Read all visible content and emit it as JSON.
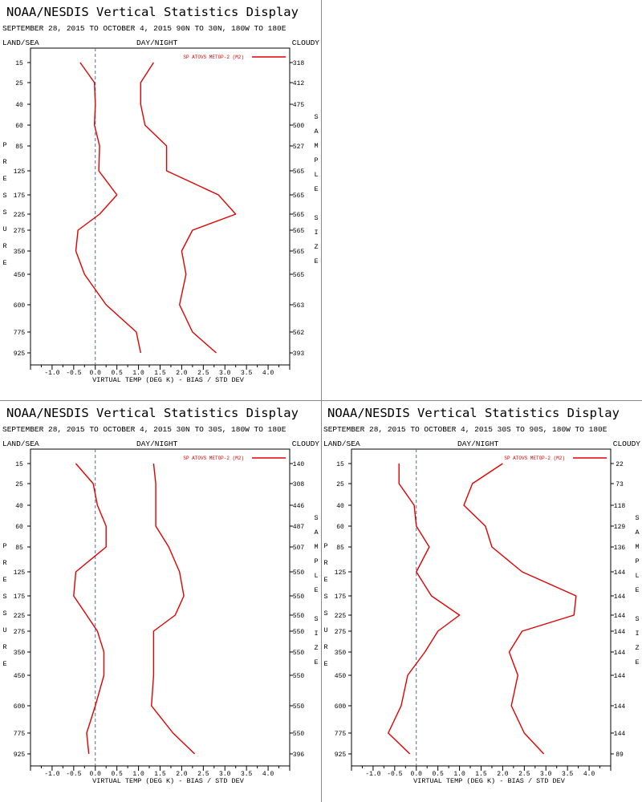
{
  "panels": [
    {
      "title": "NOAA/NESDIS Vertical Statistics Display",
      "subtitle": "SEPTEMBER 28, 2015 TO OCTOBER 4, 2015 90N TO 30N, 180W TO 180E",
      "header_left": "LAND/SEA",
      "header_center": "DAY/NIGHT",
      "header_right": "CLOUDY"
    },
    null,
    {
      "title": "NOAA/NESDIS Vertical Statistics Display",
      "subtitle": "SEPTEMBER 28, 2015 TO OCTOBER 4, 2015 30N TO 30S, 180W TO 180E",
      "header_left": "LAND/SEA",
      "header_center": "DAY/NIGHT",
      "header_right": "CLOUDY"
    },
    {
      "title": "NOAA/NESDIS Vertical Statistics Display",
      "subtitle": "SEPTEMBER 28, 2015 TO OCTOBER 4, 2015 30S TO 90S, 180W TO 180E",
      "header_left": "LAND/SEA",
      "header_center": "DAY/NIGHT",
      "header_right": "CLOUDY"
    }
  ],
  "chart_data": [
    {
      "type": "line",
      "region": "90N TO 30N",
      "pressure_levels": [
        15,
        25,
        40,
        60,
        85,
        125,
        175,
        225,
        275,
        350,
        450,
        600,
        775,
        925
      ],
      "xlabel": "VIRTUAL TEMP (DEG K) - BIAS / STD DEV",
      "ylabel": "PRESSURE",
      "right_label": "SAMPLE SIZE",
      "xticks": [
        "-1.0",
        "-0.5",
        "0.0",
        "0.5",
        "1.0",
        "1.5",
        "2.0",
        "2.5",
        "3.0",
        "3.5",
        "4.0"
      ],
      "xlim": [
        -1.5,
        4.5
      ],
      "legend": "SP ATOVS METOP-2 (M2)",
      "legend_position": "top-right",
      "line_color": "#e00000",
      "series": [
        {
          "name": "bias",
          "values": [
            -0.35,
            -0.02,
            0.0,
            -0.02,
            0.1,
            0.08,
            0.5,
            0.1,
            -0.4,
            -0.45,
            -0.25,
            0.25,
            0.95,
            1.05
          ]
        },
        {
          "name": "std_dev",
          "values": [
            1.35,
            1.05,
            1.05,
            1.15,
            1.65,
            1.65,
            2.85,
            3.25,
            2.25,
            2.0,
            2.1,
            1.95,
            2.25,
            2.8
          ]
        }
      ],
      "sample_size": [
        "318",
        "412",
        "475",
        "500",
        "527",
        "565",
        "565",
        "565",
        "565",
        "565",
        "565",
        "563",
        "562",
        "393"
      ]
    },
    {
      "type": "line",
      "region": "30N TO 30S",
      "pressure_levels": [
        15,
        25,
        40,
        60,
        85,
        125,
        175,
        225,
        275,
        350,
        450,
        600,
        775,
        925
      ],
      "xlabel": "VIRTUAL TEMP (DEG K) - BIAS / STD DEV",
      "ylabel": "PRESSURE",
      "right_label": "SAMPLE SIZE",
      "xticks": [
        "-1.0",
        "-0.5",
        "0.0",
        "0.5",
        "1.0",
        "1.5",
        "2.0",
        "2.5",
        "3.0",
        "3.5",
        "4.0"
      ],
      "xlim": [
        -1.5,
        4.5
      ],
      "legend": "SP ATOVS METOP-2 (M2)",
      "legend_position": "top-right",
      "line_color": "#e00000",
      "series": [
        {
          "name": "bias",
          "values": [
            -0.45,
            -0.05,
            0.05,
            0.25,
            0.25,
            -0.45,
            -0.5,
            -0.2,
            0.05,
            0.2,
            0.2,
            0.0,
            -0.2,
            -0.15
          ]
        },
        {
          "name": "std_dev",
          "values": [
            1.35,
            1.4,
            1.4,
            1.4,
            1.7,
            1.95,
            2.05,
            1.85,
            1.35,
            1.35,
            1.35,
            1.3,
            1.8,
            2.3
          ]
        }
      ],
      "sample_size": [
        "140",
        "308",
        "446",
        "487",
        "507",
        "550",
        "550",
        "550",
        "550",
        "550",
        "550",
        "550",
        "550",
        "396"
      ]
    },
    {
      "type": "line",
      "region": "30S TO 90S",
      "pressure_levels": [
        15,
        25,
        40,
        60,
        85,
        125,
        175,
        225,
        275,
        350,
        450,
        600,
        775,
        925
      ],
      "xlabel": "VIRTUAL TEMP (DEG K) - BIAS / STD DEV",
      "ylabel": "PRESSURE",
      "right_label": "SAMPLE SIZE",
      "xticks": [
        "-1.0",
        "-0.5",
        "0.0",
        "0.5",
        "1.0",
        "1.5",
        "2.0",
        "2.5",
        "3.0",
        "3.5",
        "4.0"
      ],
      "xlim": [
        -1.5,
        4.5
      ],
      "legend": "SP ATOVS METOP-2 (M2)",
      "legend_position": "top-right",
      "line_color": "#e00000",
      "series": [
        {
          "name": "bias",
          "values": [
            -0.4,
            -0.4,
            -0.05,
            0.0,
            0.3,
            0.0,
            0.35,
            1.0,
            0.5,
            0.2,
            -0.2,
            -0.35,
            -0.65,
            -0.15
          ]
        },
        {
          "name": "std_dev",
          "values": [
            2.0,
            1.3,
            1.1,
            1.6,
            1.75,
            2.45,
            3.7,
            3.65,
            2.45,
            2.15,
            2.35,
            2.2,
            2.5,
            2.95
          ]
        }
      ],
      "sample_size": [
        "22",
        "73",
        "118",
        "129",
        "136",
        "144",
        "144",
        "144",
        "144",
        "144",
        "144",
        "144",
        "144",
        "89"
      ]
    }
  ]
}
